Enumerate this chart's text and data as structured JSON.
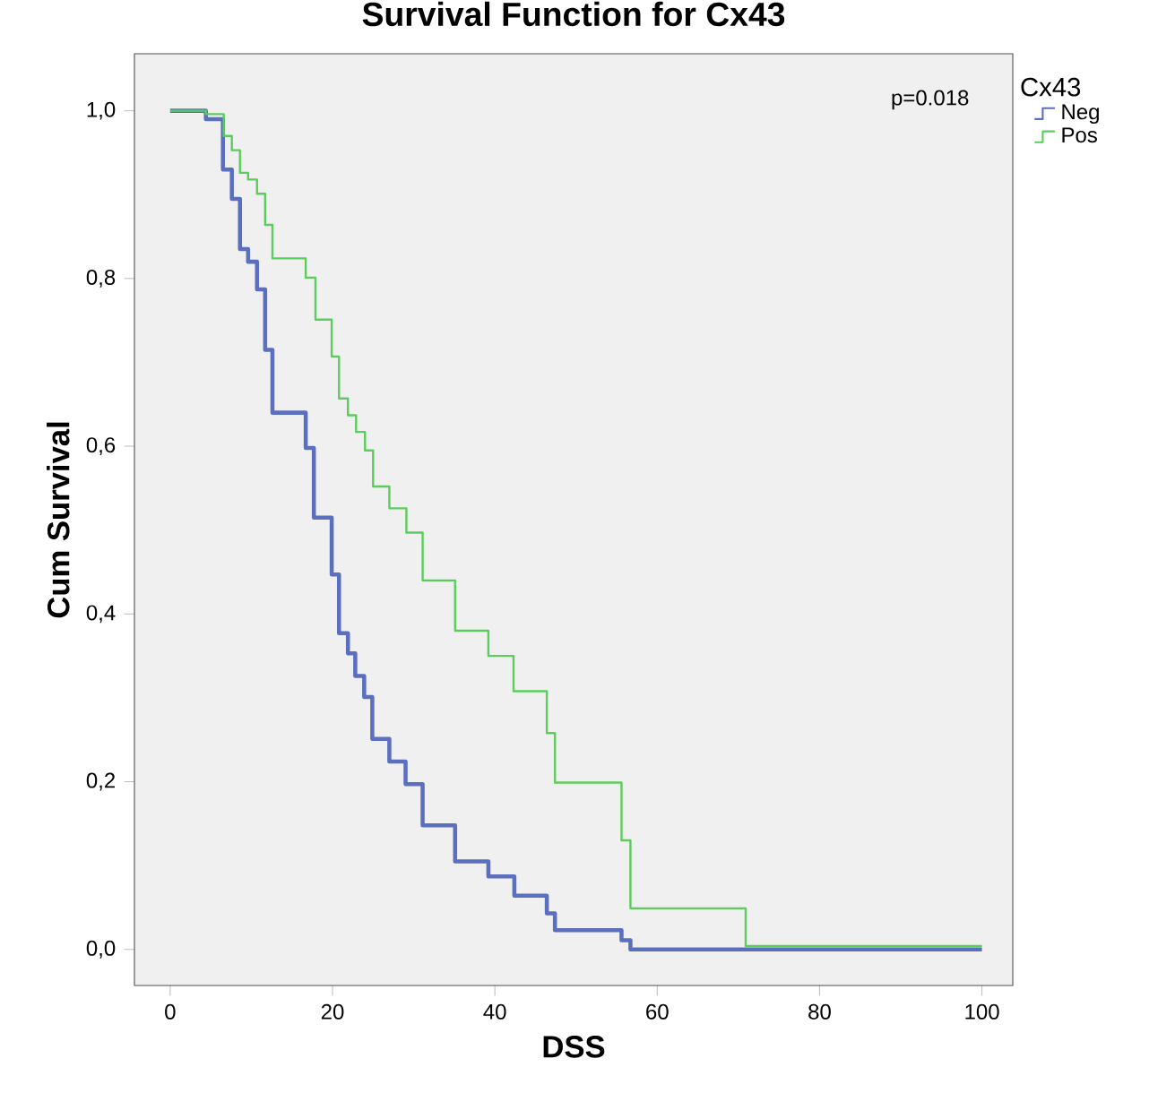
{
  "chart_data": {
    "type": "step",
    "title": "Survival Function for Cx43",
    "xlabel": "DSS",
    "ylabel": "Cum Survival",
    "legend_title": "Cx43",
    "legend": "top right",
    "annotations": [
      "p=0.018"
    ],
    "xlim": [
      -4.4,
      103.8
    ],
    "ylim": [
      -0.043,
      1.068
    ],
    "xticks": [
      0,
      20,
      40,
      60,
      80,
      100
    ],
    "yticks": [
      {
        "value": 0,
        "label": "0,0"
      },
      {
        "value": 0.2,
        "label": "0,2"
      },
      {
        "value": 0.4,
        "label": "0,4"
      },
      {
        "value": 0.6,
        "label": "0,6"
      },
      {
        "value": 0.8,
        "label": "0,8"
      },
      {
        "value": 1,
        "label": "1,0"
      }
    ],
    "series": [
      {
        "name": "Neg",
        "color": "#5b6fbf",
        "x": [
          0,
          4.4,
          6.5,
          7.6,
          8.6,
          9.6,
          10.7,
          11.7,
          12.6,
          16.7,
          17.7,
          19.9,
          20.8,
          21.9,
          22.8,
          23.9,
          24.9,
          27.0,
          29.0,
          31.1,
          35.1,
          39.2,
          42.4,
          46.4,
          47.4,
          55.6,
          56.7,
          100
        ],
        "values": [
          1.0,
          0.99,
          0.93,
          0.895,
          0.835,
          0.82,
          0.787,
          0.715,
          0.64,
          0.598,
          0.515,
          0.447,
          0.377,
          0.353,
          0.326,
          0.301,
          0.251,
          0.224,
          0.197,
          0.148,
          0.105,
          0.087,
          0.064,
          0.043,
          0.023,
          0.011,
          0.0,
          0.0
        ]
      },
      {
        "name": "Pos",
        "color": "#5ccc5c",
        "x": [
          0,
          4.4,
          6.6,
          7.6,
          8.6,
          9.6,
          10.7,
          11.7,
          12.6,
          16.7,
          17.9,
          19.9,
          20.8,
          21.9,
          22.9,
          24.0,
          25.0,
          27.0,
          29.1,
          31.1,
          35.1,
          39.2,
          42.3,
          46.4,
          47.4,
          55.6,
          56.7,
          70.9,
          100
        ],
        "values": [
          1.0,
          0.996,
          0.97,
          0.953,
          0.926,
          0.918,
          0.901,
          0.864,
          0.824,
          0.801,
          0.751,
          0.707,
          0.657,
          0.637,
          0.617,
          0.595,
          0.552,
          0.526,
          0.497,
          0.44,
          0.38,
          0.35,
          0.308,
          0.258,
          0.199,
          0.13,
          0.049,
          0.004,
          0.004
        ]
      }
    ]
  }
}
